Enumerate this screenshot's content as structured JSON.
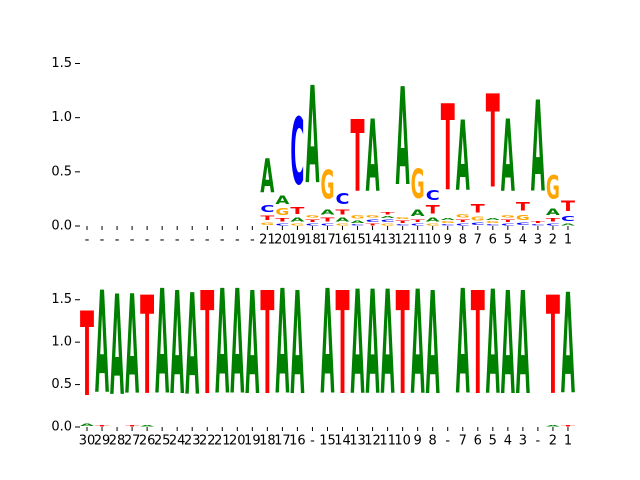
{
  "chart_data": [
    {
      "type": "logo",
      "categories": [
        "-",
        "-",
        "-",
        "-",
        "-",
        "-",
        "-",
        "-",
        "-",
        "-",
        "-",
        "-",
        "21",
        "20",
        "19",
        "18",
        "17",
        "16",
        "15",
        "14",
        "13",
        "12",
        "11",
        "10",
        "9",
        "8",
        "7",
        "6",
        "5",
        "4",
        "3",
        "2",
        "1"
      ],
      "colors": {
        "A": "#008000",
        "C": "#0000ff",
        "G": "#ffa500",
        "T": "#ff0000"
      },
      "ylim": [
        0,
        1.56
      ],
      "yticks": [
        {
          "value": 0,
          "label": "0.0"
        },
        0.5,
        {
          "value": 1,
          "label": "1.0"
        },
        1.5
      ],
      "stacks": [
        [],
        [],
        [],
        [],
        [],
        [],
        [],
        [],
        [],
        [],
        [],
        [],
        [
          {
            "letter": "G",
            "height": 0.04
          },
          {
            "letter": "T",
            "height": 0.07
          },
          {
            "letter": "C",
            "height": 0.1
          },
          {
            "letter": "A",
            "height": 0.5
          }
        ],
        [
          {
            "letter": "C",
            "height": 0.03
          },
          {
            "letter": "T",
            "height": 0.05
          },
          {
            "letter": "G",
            "height": 0.1
          },
          {
            "letter": "A",
            "height": 0.12
          }
        ],
        [
          {
            "letter": "G",
            "height": 0.03
          },
          {
            "letter": "A",
            "height": 0.06
          },
          {
            "letter": "T",
            "height": 0.1
          },
          {
            "letter": "C",
            "height": 0.99
          }
        ],
        [
          {
            "letter": "C",
            "height": 0.03
          },
          {
            "letter": "T",
            "height": 0.04
          },
          {
            "letter": "G",
            "height": 0.04
          },
          {
            "letter": "A",
            "height": 1.44
          }
        ],
        [
          {
            "letter": "C",
            "height": 0.03
          },
          {
            "letter": "T",
            "height": 0.06
          },
          {
            "letter": "A",
            "height": 0.08
          },
          {
            "letter": "G",
            "height": 0.42
          }
        ],
        [
          {
            "letter": "G",
            "height": 0.03
          },
          {
            "letter": "A",
            "height": 0.06
          },
          {
            "letter": "T",
            "height": 0.08
          },
          {
            "letter": "C",
            "height": 0.16
          }
        ],
        [
          {
            "letter": "C",
            "height": 0.02
          },
          {
            "letter": "A",
            "height": 0.04
          },
          {
            "letter": "G",
            "height": 0.05
          },
          {
            "letter": "T",
            "height": 1.06
          }
        ],
        [
          {
            "letter": "T",
            "height": 0.03
          },
          {
            "letter": "C",
            "height": 0.04
          },
          {
            "letter": "G",
            "height": 0.04
          },
          {
            "letter": "A",
            "height": 1.07
          }
        ],
        [
          {
            "letter": "G",
            "height": 0.03
          },
          {
            "letter": "C",
            "height": 0.04
          },
          {
            "letter": "A",
            "height": 0.03
          },
          {
            "letter": "T",
            "height": 0.04
          }
        ],
        [
          {
            "letter": "C",
            "height": 0.02
          },
          {
            "letter": "T",
            "height": 0.04
          },
          {
            "letter": "G",
            "height": 0.03
          },
          {
            "letter": "A",
            "height": 1.45
          }
        ],
        [
          {
            "letter": "C",
            "height": 0.03
          },
          {
            "letter": "T",
            "height": 0.04
          },
          {
            "letter": "A",
            "height": 0.1
          },
          {
            "letter": "G",
            "height": 0.43
          }
        ],
        [
          {
            "letter": "G",
            "height": 0.03
          },
          {
            "letter": "A",
            "height": 0.06
          },
          {
            "letter": "T",
            "height": 0.12
          },
          {
            "letter": "C",
            "height": 0.14
          }
        ],
        [
          {
            "letter": "C",
            "height": 0.02
          },
          {
            "letter": "G",
            "height": 0.03
          },
          {
            "letter": "A",
            "height": 0.03
          },
          {
            "letter": "T",
            "height": 1.27
          }
        ],
        [
          {
            "letter": "C",
            "height": 0.03
          },
          {
            "letter": "T",
            "height": 0.04
          },
          {
            "letter": "G",
            "height": 0.05
          },
          {
            "letter": "A",
            "height": 1.04
          }
        ],
        [
          {
            "letter": "C",
            "height": 0.04
          },
          {
            "letter": "G",
            "height": 0.06
          },
          {
            "letter": "T",
            "height": 0.12
          }
        ],
        [
          {
            "letter": "C",
            "height": 0.02
          },
          {
            "letter": "G",
            "height": 0.03
          },
          {
            "letter": "A",
            "height": 0.03
          },
          {
            "letter": "T",
            "height": 1.38
          }
        ],
        [
          {
            "letter": "C",
            "height": 0.03
          },
          {
            "letter": "T",
            "height": 0.04
          },
          {
            "letter": "G",
            "height": 0.04
          },
          {
            "letter": "A",
            "height": 1.07
          }
        ],
        [
          {
            "letter": "C",
            "height": 0.04
          },
          {
            "letter": "G",
            "height": 0.08
          },
          {
            "letter": "T",
            "height": 0.12
          }
        ],
        [
          {
            "letter": "C",
            "height": 0.02
          },
          {
            "letter": "T",
            "height": 0.03
          },
          {
            "letter": "A",
            "height": 1.35
          }
        ],
        [
          {
            "letter": "C",
            "height": 0.03
          },
          {
            "letter": "T",
            "height": 0.05
          },
          {
            "letter": "A",
            "height": 0.1
          },
          {
            "letter": "G",
            "height": 0.35
          }
        ],
        [
          {
            "letter": "A",
            "height": 0.03
          },
          {
            "letter": "C",
            "height": 0.08
          },
          {
            "letter": "T",
            "height": 0.15
          }
        ]
      ]
    },
    {
      "type": "logo",
      "categories": [
        "30",
        "29",
        "28",
        "27",
        "26",
        "25",
        "24",
        "23",
        "22",
        "21",
        "20",
        "19",
        "18",
        "17",
        "16",
        "-",
        "15",
        "14",
        "13",
        "12",
        "11",
        "10",
        "9",
        "8",
        "-",
        "7",
        "6",
        "5",
        "4",
        "3",
        "-",
        "2",
        "1"
      ],
      "colors": {
        "A": "#008000",
        "C": "#0000ff",
        "G": "#ffa500",
        "T": "#ff0000"
      },
      "ylim": [
        0,
        1.98
      ],
      "yticks": [
        {
          "value": 0,
          "label": "0.0"
        },
        0.5,
        {
          "value": 1,
          "label": "1.0"
        },
        1.5
      ],
      "stacks": [
        [
          {
            "letter": "A",
            "height": 0.05
          },
          {
            "letter": "T",
            "height": 1.6
          }
        ],
        [
          {
            "letter": "T",
            "height": 0.02
          },
          {
            "letter": "A",
            "height": 1.93
          }
        ],
        [
          {
            "letter": "A",
            "height": 1.9
          }
        ],
        [
          {
            "letter": "T",
            "height": 0.02
          },
          {
            "letter": "A",
            "height": 1.88
          }
        ],
        [
          {
            "letter": "A",
            "height": 0.02
          },
          {
            "letter": "T",
            "height": 1.86
          }
        ],
        [
          {
            "letter": "A",
            "height": 1.98
          }
        ],
        [
          {
            "letter": "A",
            "height": 1.95
          }
        ],
        [
          {
            "letter": "A",
            "height": 1.92
          }
        ],
        [
          {
            "letter": "T",
            "height": 1.95
          }
        ],
        [
          {
            "letter": "A",
            "height": 1.98
          }
        ],
        [
          {
            "letter": "A",
            "height": 1.98
          }
        ],
        [
          {
            "letter": "A",
            "height": 1.95
          }
        ],
        [
          {
            "letter": "T",
            "height": 1.95
          }
        ],
        [
          {
            "letter": "A",
            "height": 1.98
          }
        ],
        [
          {
            "letter": "A",
            "height": 1.95
          }
        ],
        [],
        [
          {
            "letter": "A",
            "height": 1.98
          }
        ],
        [
          {
            "letter": "T",
            "height": 1.95
          }
        ],
        [
          {
            "letter": "A",
            "height": 1.97
          }
        ],
        [
          {
            "letter": "A",
            "height": 1.97
          }
        ],
        [
          {
            "letter": "A",
            "height": 1.97
          }
        ],
        [
          {
            "letter": "T",
            "height": 1.95
          }
        ],
        [
          {
            "letter": "A",
            "height": 1.97
          }
        ],
        [
          {
            "letter": "A",
            "height": 1.95
          }
        ],
        [],
        [
          {
            "letter": "A",
            "height": 1.98
          }
        ],
        [
          {
            "letter": "T",
            "height": 1.95
          }
        ],
        [
          {
            "letter": "A",
            "height": 1.97
          }
        ],
        [
          {
            "letter": "A",
            "height": 1.95
          }
        ],
        [
          {
            "letter": "A",
            "height": 1.95
          }
        ],
        [],
        [
          {
            "letter": "A",
            "height": 0.02
          },
          {
            "letter": "T",
            "height": 1.86
          }
        ],
        [
          {
            "letter": "T",
            "height": 0.02
          },
          {
            "letter": "A",
            "height": 1.9
          }
        ]
      ]
    }
  ]
}
